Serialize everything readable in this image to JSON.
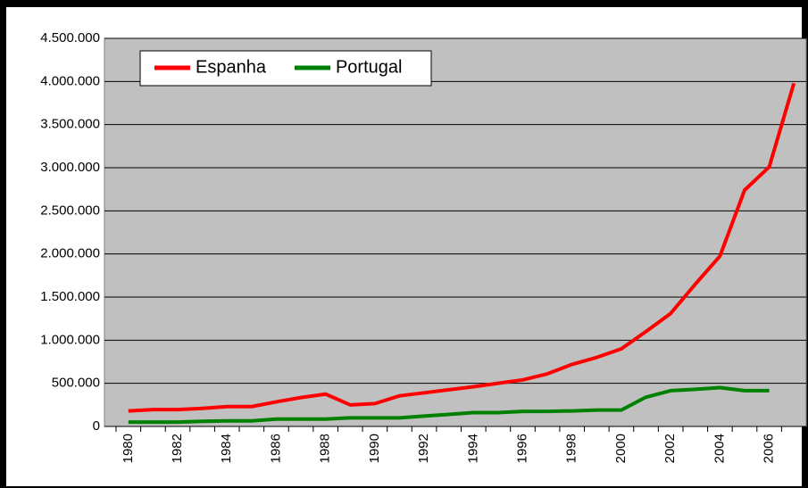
{
  "chart_data": {
    "type": "line",
    "categories": [
      "1980",
      null,
      "1982",
      null,
      "1984",
      null,
      "1986",
      null,
      "1988",
      null,
      "1990",
      null,
      "1992",
      null,
      "1994",
      null,
      "1996",
      null,
      "1998",
      null,
      "2000",
      null,
      "2002",
      null,
      "2004",
      null,
      "2006",
      null
    ],
    "series": [
      {
        "name": "Espanha",
        "color": "#ff0000",
        "values": [
          180000,
          195000,
          195000,
          210000,
          230000,
          230000,
          285000,
          335000,
          375000,
          250000,
          265000,
          355000,
          390000,
          425000,
          460000,
          500000,
          540000,
          610000,
          720000,
          800000,
          900000,
          1100000,
          1310000,
          1650000,
          1975000,
          2740000,
          3010000,
          3980000
        ]
      },
      {
        "name": "Portugal",
        "color": "#008000",
        "values": [
          50000,
          50000,
          50000,
          60000,
          65000,
          65000,
          85000,
          85000,
          85000,
          100000,
          100000,
          100000,
          120000,
          140000,
          160000,
          160000,
          175000,
          175000,
          180000,
          190000,
          190000,
          340000,
          415000,
          430000,
          450000,
          415000,
          415000,
          null
        ]
      }
    ],
    "ylim": [
      0,
      4500000
    ],
    "yticks": [
      0,
      {
        "value": 500000,
        "label": "500.000"
      },
      {
        "value": 1000000,
        "label": "1.000.000"
      },
      {
        "value": 1500000,
        "label": "1.500.000"
      },
      {
        "value": 2000000,
        "label": "2.000.000"
      },
      {
        "value": 2500000,
        "label": "2.500.000"
      },
      {
        "value": 3000000,
        "label": "3.000.000"
      },
      {
        "value": 3500000,
        "label": "3.500.000"
      },
      {
        "value": 4000000,
        "label": "4.000.000"
      },
      {
        "value": 4500000,
        "label": "4.500.000"
      }
    ],
    "grid": true,
    "legend": "top-left",
    "plot_background": "#c0c0c0"
  }
}
